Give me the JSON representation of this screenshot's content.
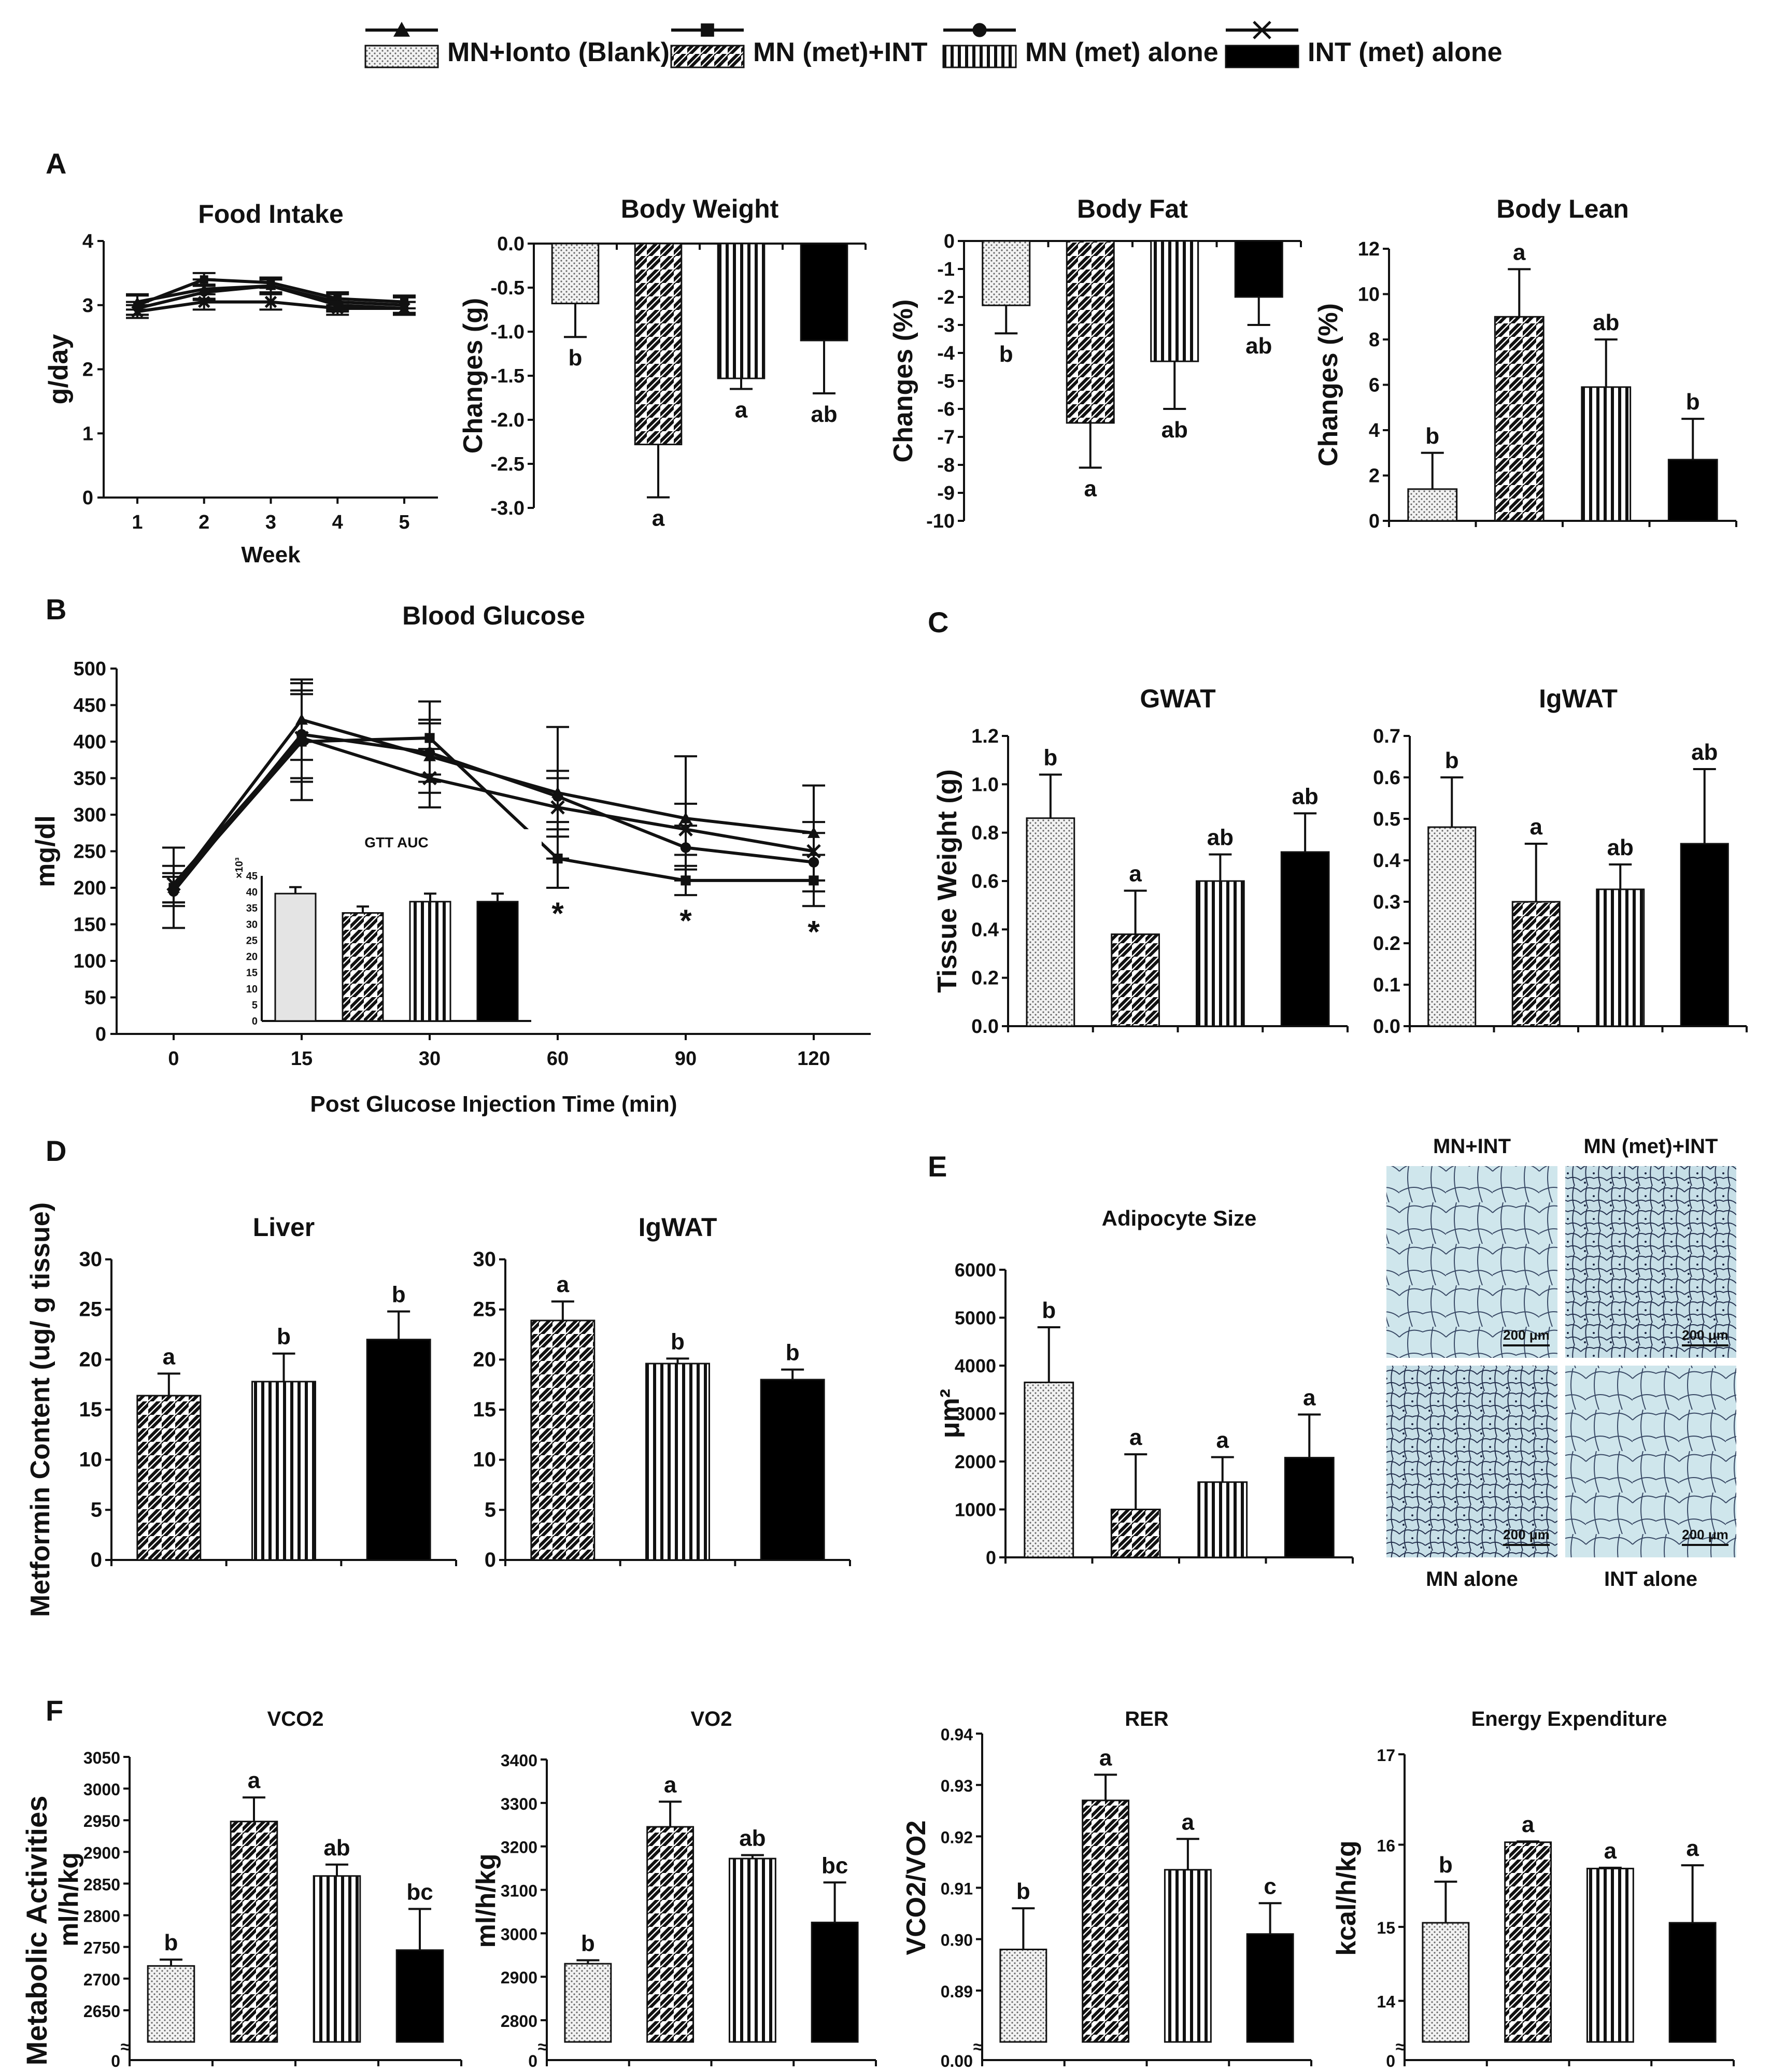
{
  "legend": [
    {
      "label": "MN+Ionto (Blank)",
      "pattern": "dots",
      "marker": "triangle"
    },
    {
      "label": "MN (met)+INT",
      "pattern": "diag",
      "marker": "square"
    },
    {
      "label": "MN (met) alone",
      "pattern": "vert",
      "marker": "circle"
    },
    {
      "label": "INT (met) alone",
      "pattern": "solid",
      "marker": "x"
    }
  ],
  "colors": {
    "ink": "#111111",
    "solid": "#000000",
    "dots_bg": "#f2f2f2",
    "histology_bg": "#cfe6ec",
    "histology_cell": "#2a3a55"
  },
  "panel_letters": [
    "A",
    "B",
    "C",
    "D",
    "E",
    "F"
  ],
  "approx_mark": "≈",
  "chart_data": [
    {
      "id": "food",
      "type": "line",
      "title": "Food Intake",
      "xlabel": "Week",
      "ylabel": "g/day",
      "x": [
        1,
        2,
        3,
        4,
        5
      ],
      "ylim": [
        0,
        4
      ],
      "yticks": [
        0,
        1,
        2,
        3,
        4
      ],
      "series": [
        {
          "name": "MN+Ionto (Blank)",
          "values": [
            3.05,
            3.25,
            3.3,
            3.05,
            3.0
          ],
          "err": [
            0.12,
            0.15,
            0.1,
            0.12,
            0.12
          ]
        },
        {
          "name": "MN (met)+INT",
          "values": [
            3.0,
            3.4,
            3.35,
            3.1,
            3.05
          ],
          "err": [
            0.15,
            0.1,
            0.08,
            0.1,
            0.1
          ]
        },
        {
          "name": "MN (met) alone",
          "values": [
            2.95,
            3.2,
            3.3,
            3.0,
            2.95
          ],
          "err": [
            0.1,
            0.12,
            0.1,
            0.1,
            0.1
          ]
        },
        {
          "name": "INT (met) alone",
          "values": [
            2.9,
            3.05,
            3.05,
            2.95,
            2.95
          ],
          "err": [
            0.1,
            0.12,
            0.12,
            0.1,
            0.1
          ]
        }
      ]
    },
    {
      "id": "bw",
      "type": "bar",
      "title": "Body Weight",
      "ylabel": "Changes (g)",
      "ylim": [
        -3.0,
        0.0
      ],
      "yticks": [
        "0.0",
        "-0.5",
        "-1.0",
        "-1.5",
        "-2.0",
        "-2.5",
        "-3.0"
      ],
      "values": [
        -0.68,
        -2.28,
        -1.53,
        -1.1
      ],
      "err": [
        0.38,
        0.6,
        0.12,
        0.6
      ],
      "letters": [
        "b",
        "a",
        "a",
        "ab"
      ]
    },
    {
      "id": "bf",
      "type": "bar",
      "title": "Body Fat",
      "ylabel": "Changes (%)",
      "ylim": [
        -10,
        0
      ],
      "yticks": [
        "0",
        "-1",
        "-2",
        "-3",
        "-4",
        "-5",
        "-6",
        "-7",
        "-8",
        "-9",
        "-10"
      ],
      "values": [
        -2.3,
        -6.5,
        -4.3,
        -2.0
      ],
      "err": [
        1.0,
        1.6,
        1.7,
        1.0
      ],
      "letters": [
        "b",
        "a",
        "ab",
        "ab"
      ]
    },
    {
      "id": "bl",
      "type": "bar",
      "title": "Body Lean",
      "ylabel": "Changes (%)",
      "ylim": [
        0,
        12
      ],
      "yticks": [
        "0",
        "2",
        "4",
        "6",
        "8",
        "10",
        "12"
      ],
      "values": [
        1.4,
        9.0,
        5.9,
        2.7
      ],
      "err": [
        1.6,
        2.1,
        2.1,
        1.8
      ],
      "letters": [
        "b",
        "a",
        "ab",
        "b"
      ]
    },
    {
      "id": "bg",
      "type": "line",
      "title": "Blood Glucose",
      "xlabel": "Post Glucose Injection Time (min)",
      "ylabel": "mg/dl",
      "x": [
        "0",
        "15",
        "30",
        "60",
        "90",
        "120"
      ],
      "ylim": [
        0,
        500
      ],
      "yticks": [
        0,
        50,
        100,
        150,
        200,
        250,
        300,
        350,
        400,
        450,
        500
      ],
      "series": [
        {
          "name": "MN+Ionto (Blank)",
          "values": [
            200,
            430,
            380,
            330,
            295,
            275
          ],
          "err": [
            55,
            55,
            50,
            90,
            85,
            65
          ]
        },
        {
          "name": "MN (met)+INT",
          "values": [
            200,
            400,
            405,
            240,
            210,
            210
          ],
          "err": [
            20,
            80,
            50,
            40,
            20,
            35
          ]
        },
        {
          "name": "MN (met) alone",
          "values": [
            195,
            410,
            385,
            325,
            255,
            235
          ],
          "err": [
            20,
            60,
            40,
            35,
            30,
            40
          ]
        },
        {
          "name": "INT (met) alone",
          "values": [
            205,
            405,
            350,
            310,
            280,
            250
          ],
          "err": [
            25,
            60,
            40,
            40,
            35,
            40
          ]
        }
      ],
      "annotations": [
        "*",
        "*",
        "*"
      ],
      "annotation_x": [
        "60",
        "90",
        "120"
      ],
      "inset": {
        "title": "GTT AUC",
        "scale": "×10³",
        "ylim": [
          0,
          45
        ],
        "yticks": [
          0,
          5,
          10,
          15,
          20,
          25,
          30,
          35,
          40,
          45
        ],
        "values": [
          39.5,
          33.5,
          37.0,
          37.0
        ],
        "err": [
          2,
          2,
          2.5,
          2.5
        ]
      }
    },
    {
      "id": "gwat",
      "type": "bar",
      "title": "GWAT",
      "ylabel": "Tissue Weight (g)",
      "ylim": [
        0,
        1.2
      ],
      "yticks": [
        "0.0",
        "0.2",
        "0.4",
        "0.6",
        "0.8",
        "1.0",
        "1.2"
      ],
      "values": [
        0.86,
        0.38,
        0.6,
        0.72
      ],
      "err": [
        0.18,
        0.18,
        0.11,
        0.16
      ],
      "letters": [
        "b",
        "a",
        "ab",
        "ab"
      ]
    },
    {
      "id": "igwat_c",
      "type": "bar",
      "title": "IgWAT",
      "ylim": [
        0,
        0.7
      ],
      "yticks": [
        "0.0",
        "0.1",
        "0.2",
        "0.3",
        "0.4",
        "0.5",
        "0.6",
        "0.7"
      ],
      "values": [
        0.48,
        0.3,
        0.33,
        0.44
      ],
      "err": [
        0.12,
        0.14,
        0.06,
        0.18
      ],
      "letters": [
        "b",
        "a",
        "ab",
        "ab"
      ]
    },
    {
      "id": "liver",
      "type": "bar",
      "title": "Liver",
      "ylabel": "Metformin Content (ug/ g  tissue)",
      "ylim": [
        0,
        30
      ],
      "yticks": [
        "0",
        "5",
        "10",
        "15",
        "20",
        "25",
        "30"
      ],
      "values": [
        16.4,
        17.8,
        22.0
      ],
      "err": [
        2.2,
        2.8,
        2.8
      ],
      "letters": [
        "a",
        "b",
        "b"
      ],
      "groups": [
        1,
        2,
        3
      ]
    },
    {
      "id": "igwat_d",
      "type": "bar",
      "title": "IgWAT",
      "ylim": [
        0,
        30
      ],
      "yticks": [
        "0",
        "5",
        "10",
        "15",
        "20",
        "25",
        "30"
      ],
      "values": [
        23.9,
        19.6,
        18.0
      ],
      "err": [
        1.9,
        0.5,
        1.0
      ],
      "letters": [
        "a",
        "b",
        "b"
      ],
      "groups": [
        1,
        2,
        3
      ]
    },
    {
      "id": "adipo",
      "type": "bar",
      "title": "Adipocyte Size",
      "ylabel": "μm²",
      "ylim": [
        0,
        6000
      ],
      "yticks": [
        "0",
        "1000",
        "2000",
        "3000",
        "4000",
        "5000",
        "6000"
      ],
      "values": [
        3650,
        1000,
        1570,
        2080
      ],
      "err": [
        1150,
        1150,
        520,
        900
      ],
      "letters": [
        "b",
        "a",
        "a",
        "a"
      ]
    },
    {
      "id": "vco2",
      "type": "bar",
      "title": "VCO2",
      "ylabel": "ml/h/kg",
      "ylabel2": "Metabolic Activities",
      "ylim": [
        2600,
        3050
      ],
      "yticks": [
        "2650",
        "2700",
        "2750",
        "2800",
        "2850",
        "2900",
        "2950",
        "3000",
        "3050"
      ],
      "zero_label": "0",
      "values": [
        2720,
        2948,
        2862,
        2745
      ],
      "err": [
        10,
        38,
        18,
        65
      ],
      "letters": [
        "b",
        "a",
        "ab",
        "bc"
      ]
    },
    {
      "id": "vo2",
      "type": "bar",
      "title": "VO2",
      "ylabel": "ml/h/kg",
      "ylim": [
        2750,
        3400
      ],
      "yticks": [
        "2800",
        "2900",
        "3000",
        "3100",
        "3200",
        "3300",
        "3400"
      ],
      "zero_label": "0",
      "values": [
        2930,
        3245,
        3172,
        3025
      ],
      "err": [
        8,
        58,
        8,
        92
      ],
      "letters": [
        "b",
        "a",
        "ab",
        "bc"
      ]
    },
    {
      "id": "rer",
      "type": "bar",
      "title": "RER",
      "ylabel": "VCO2/VO2",
      "ylim": [
        0.88,
        0.94
      ],
      "yticks": [
        "0.89",
        "0.90",
        "0.91",
        "0.92",
        "0.93",
        "0.94"
      ],
      "zero_label": "0.00",
      "values": [
        0.898,
        0.927,
        0.9135,
        0.901
      ],
      "err": [
        0.008,
        0.005,
        0.006,
        0.006
      ],
      "letters": [
        "b",
        "a",
        "a",
        "c"
      ]
    },
    {
      "id": "ee",
      "type": "bar",
      "title": "Energy Expenditure",
      "ylabel": "kcal/h/kg",
      "ylim": [
        13.5,
        17
      ],
      "yticks": [
        "14",
        "15",
        "16",
        "17"
      ],
      "tick_values": [
        14,
        14.9,
        15.9,
        17
      ],
      "zero_label": "0",
      "values": [
        14.95,
        15.93,
        15.61,
        14.95
      ],
      "err": [
        0.5,
        0.01,
        0.01,
        0.7
      ],
      "letters": [
        "b",
        "a",
        "a",
        "a"
      ]
    }
  ],
  "histology": {
    "labels": [
      "MN+INT",
      "MN (met)+INT",
      "MN alone",
      "INT alone"
    ],
    "scale": "200 μm"
  }
}
